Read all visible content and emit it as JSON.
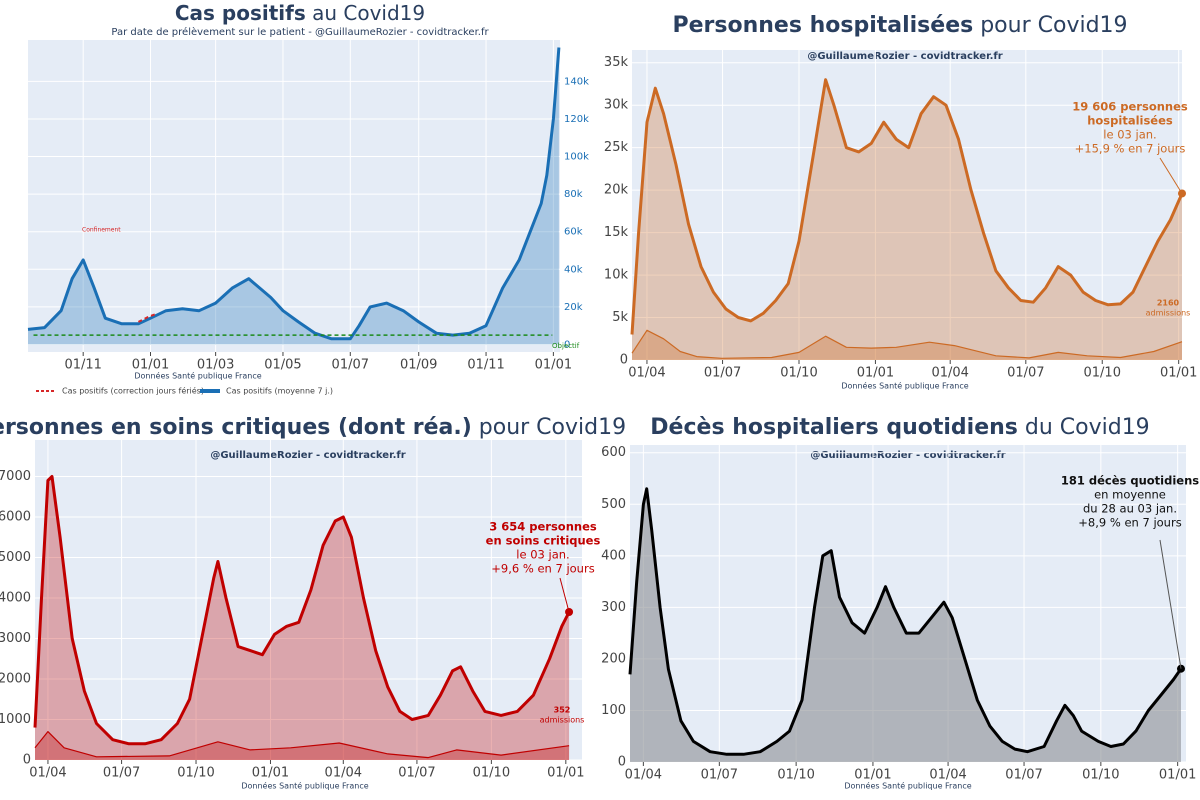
{
  "chart_data": [
    {
      "type": "line",
      "title_bold": "Cas positifs",
      "title_rest": " au Covid19",
      "subtitle": "Par date de prélèvement sur le patient - @GuillaumeRozier - covidtracker.fr",
      "source": "Données Santé publique France",
      "yaxis_side": "right",
      "grid": true,
      "xlim": [
        -50,
        432
      ],
      "xticks": [
        {
          "value": 0,
          "label": "01/11"
        },
        {
          "value": 61,
          "label": "01/01"
        },
        {
          "value": 120,
          "label": "01/03"
        },
        {
          "value": 181,
          "label": "01/05"
        },
        {
          "value": 242,
          "label": "01/07"
        },
        {
          "value": 304,
          "label": "01/09"
        },
        {
          "value": 365,
          "label": "01/11"
        },
        {
          "value": 426,
          "label": "01/01"
        }
      ],
      "ylim": [
        -4000,
        162000
      ],
      "yticks": [
        0,
        {
          "value": 20000,
          "label": "20k"
        },
        {
          "value": 40000,
          "label": "40k"
        },
        {
          "value": 60000,
          "label": "60k"
        },
        {
          "value": 80000,
          "label": "80k"
        },
        {
          "value": 100000,
          "label": "100k"
        },
        {
          "value": 120000,
          "label": "120k"
        },
        {
          "value": 140000,
          "label": "140k"
        }
      ],
      "annotations": [
        "Confinement",
        "Objectif"
      ],
      "series": [
        {
          "name": "Cas positifs (moyenne 7 j.)",
          "color": "#1a6fb5",
          "fill": true,
          "width": 3,
          "x": [
            -50,
            -35,
            -20,
            -10,
            0,
            10,
            20,
            35,
            50,
            61,
            75,
            90,
            105,
            120,
            135,
            150,
            160,
            170,
            181,
            195,
            210,
            225,
            242,
            250,
            260,
            275,
            290,
            304,
            320,
            335,
            350,
            365,
            380,
            395,
            405,
            415,
            420,
            426,
            431
          ],
          "values": [
            8000,
            9000,
            18000,
            35000,
            45000,
            30000,
            14000,
            11000,
            11000,
            14000,
            18000,
            19000,
            18000,
            22000,
            30000,
            35000,
            30000,
            25000,
            18000,
            12000,
            6000,
            3000,
            3000,
            10000,
            20000,
            22000,
            18000,
            12000,
            6000,
            5000,
            6000,
            10000,
            30000,
            45000,
            60000,
            75000,
            90000,
            120000,
            158000
          ]
        },
        {
          "name": "Cas positifs (correction jours fériés)",
          "color": "#d62728",
          "dash": true,
          "width": 2,
          "x": [
            50,
            55,
            60,
            65
          ],
          "values": [
            12000,
            13500,
            15000,
            16000
          ]
        },
        {
          "color": "#1a8a1a",
          "dash": true,
          "width": 1.5,
          "x": [
            -45,
            425
          ],
          "values": [
            5000,
            5000
          ]
        }
      ]
    },
    {
      "type": "line",
      "title_bold": "Personnes hospitalisées",
      "title_rest": " pour Covid19",
      "subtitle": "@GuillaumeRozier - covidtracker.fr",
      "source": "Données Santé publique France",
      "grid": true,
      "xlim": [
        -18,
        644
      ],
      "xticks": [
        {
          "value": 0,
          "label": "01/04"
        },
        {
          "value": 91,
          "label": "01/07"
        },
        {
          "value": 183,
          "label": "01/10"
        },
        {
          "value": 275,
          "label": "01/01"
        },
        {
          "value": 365,
          "label": "01/04"
        },
        {
          "value": 456,
          "label": "01/07"
        },
        {
          "value": 548,
          "label": "01/10"
        },
        {
          "value": 640,
          "label": "01/01"
        }
      ],
      "ylim": [
        0,
        36500
      ],
      "yticks": [
        0,
        {
          "value": 5000,
          "label": "5k"
        },
        {
          "value": 10000,
          "label": "10k"
        },
        {
          "value": 15000,
          "label": "15k"
        },
        {
          "value": 20000,
          "label": "20k"
        },
        {
          "value": 25000,
          "label": "25k"
        },
        {
          "value": 30000,
          "label": "30k"
        },
        {
          "value": 35000,
          "label": "35k"
        }
      ],
      "annotations": [
        "19 606 personnes",
        "hospitalisées",
        "le 03 jan.",
        "+15,9 % en 7 jours"
      ],
      "admissions_label": [
        "2160",
        "admissions"
      ],
      "series": [
        {
          "color": "#cc6a24",
          "fill": true,
          "width": 3,
          "x": [
            -18,
            -10,
            0,
            10,
            20,
            35,
            50,
            65,
            80,
            95,
            110,
            125,
            140,
            155,
            170,
            183,
            200,
            215,
            225,
            240,
            255,
            270,
            285,
            300,
            315,
            330,
            345,
            360,
            375,
            390,
            405,
            420,
            435,
            450,
            465,
            480,
            495,
            510,
            525,
            540,
            555,
            570,
            585,
            600,
            615,
            630,
            644
          ],
          "values": [
            3000,
            15000,
            28000,
            32000,
            29000,
            23000,
            16000,
            11000,
            8000,
            6000,
            5000,
            4600,
            5500,
            7000,
            9000,
            14000,
            24000,
            33000,
            30000,
            25000,
            24500,
            25500,
            28000,
            26000,
            25000,
            29000,
            31000,
            30000,
            26000,
            20000,
            15000,
            10500,
            8500,
            7000,
            6800,
            8500,
            11000,
            10000,
            8000,
            7000,
            6500,
            6600,
            8000,
            11000,
            14000,
            16500,
            19606
          ]
        },
        {
          "color": "#cc6a24",
          "fill": true,
          "width": 1.2,
          "x": [
            -18,
            0,
            20,
            40,
            60,
            90,
            150,
            183,
            215,
            240,
            270,
            300,
            340,
            370,
            420,
            460,
            495,
            530,
            570,
            610,
            644
          ],
          "values": [
            800,
            3500,
            2500,
            1000,
            400,
            200,
            300,
            900,
            2800,
            1500,
            1400,
            1500,
            2100,
            1700,
            500,
            250,
            900,
            500,
            300,
            1000,
            2160
          ]
        }
      ]
    },
    {
      "type": "line",
      "title_bold": "Personnes en soins critiques (dont réa.)",
      "title_rest": " pour Covid19",
      "subtitle": "@GuillaumeRozier - covidtracker.fr",
      "source": "Données Santé publique France",
      "grid": true,
      "xlim": [
        -16,
        660
      ],
      "xticks": [
        {
          "value": 0,
          "label": "01/04"
        },
        {
          "value": 91,
          "label": "01/07"
        },
        {
          "value": 183,
          "label": "01/10"
        },
        {
          "value": 275,
          "label": "01/01"
        },
        {
          "value": 365,
          "label": "01/04"
        },
        {
          "value": 456,
          "label": "01/07"
        },
        {
          "value": 548,
          "label": "01/10"
        },
        {
          "value": 640,
          "label": "01/01"
        }
      ],
      "ylim": [
        0,
        7900
      ],
      "yticks": [
        0,
        1000,
        2000,
        3000,
        4000,
        5000,
        6000,
        7000
      ],
      "annotations": [
        "3 654 personnes",
        "en soins critiques",
        "le 03 jan.",
        "+9,6 % en 7 jours"
      ],
      "admissions_label": [
        "352",
        "admissions"
      ],
      "series": [
        {
          "color": "#c00000",
          "fill": true,
          "width": 3,
          "x": [
            -16,
            -8,
            0,
            5,
            15,
            30,
            45,
            60,
            80,
            100,
            120,
            140,
            160,
            175,
            190,
            205,
            210,
            220,
            235,
            250,
            265,
            280,
            295,
            310,
            325,
            340,
            355,
            365,
            375,
            390,
            405,
            420,
            435,
            450,
            470,
            485,
            500,
            510,
            525,
            540,
            560,
            580,
            600,
            620,
            635,
            644
          ],
          "values": [
            800,
            4000,
            6900,
            7000,
            5500,
            3000,
            1700,
            900,
            500,
            400,
            400,
            500,
            900,
            1500,
            3000,
            4500,
            4900,
            4000,
            2800,
            2700,
            2600,
            3100,
            3300,
            3400,
            4200,
            5300,
            5900,
            6000,
            5500,
            4000,
            2700,
            1800,
            1200,
            1000,
            1100,
            1600,
            2200,
            2300,
            1700,
            1200,
            1100,
            1200,
            1600,
            2500,
            3300,
            3654
          ]
        },
        {
          "color": "#c00000",
          "fill": true,
          "width": 1.2,
          "x": [
            -16,
            0,
            20,
            60,
            150,
            210,
            250,
            300,
            360,
            420,
            470,
            505,
            560,
            644
          ],
          "values": [
            300,
            700,
            300,
            80,
            100,
            450,
            250,
            300,
            420,
            150,
            60,
            250,
            120,
            352
          ]
        }
      ]
    },
    {
      "type": "line",
      "title_bold": "Décès hospitaliers quotidiens",
      "title_rest": " du Covid19",
      "subtitle": "@GuillaumeRozier - covidtracker.fr",
      "source": "Données Santé publique France",
      "grid": true,
      "xlim": [
        -16,
        650
      ],
      "xticks": [
        {
          "value": 0,
          "label": "01/04"
        },
        {
          "value": 91,
          "label": "01/07"
        },
        {
          "value": 183,
          "label": "01/10"
        },
        {
          "value": 275,
          "label": "01/01"
        },
        {
          "value": 365,
          "label": "01/04"
        },
        {
          "value": 456,
          "label": "01/07"
        },
        {
          "value": 548,
          "label": "01/10"
        },
        {
          "value": 640,
          "label": "01/01"
        }
      ],
      "ylim": [
        0,
        615
      ],
      "yticks": [
        0,
        100,
        200,
        300,
        400,
        500,
        600
      ],
      "annotations": [
        "181 décès quotidiens",
        "en moyenne",
        "du 28 au 03 jan.",
        "+8,9 % en 7 jours"
      ],
      "series": [
        {
          "color": "#000000",
          "fill": true,
          "fillColor": "#8c8f94",
          "width": 3,
          "x": [
            -16,
            -8,
            0,
            4,
            10,
            20,
            30,
            45,
            60,
            80,
            100,
            120,
            140,
            160,
            175,
            190,
            205,
            215,
            225,
            235,
            250,
            265,
            280,
            290,
            300,
            315,
            330,
            345,
            360,
            370,
            385,
            400,
            415,
            430,
            445,
            460,
            480,
            495,
            505,
            515,
            525,
            545,
            560,
            575,
            590,
            605,
            620,
            635,
            644
          ],
          "values": [
            170,
            350,
            500,
            530,
            450,
            300,
            180,
            80,
            40,
            20,
            15,
            15,
            20,
            40,
            60,
            120,
            300,
            400,
            410,
            320,
            270,
            250,
            300,
            340,
            300,
            250,
            250,
            280,
            310,
            280,
            200,
            120,
            70,
            40,
            25,
            20,
            30,
            80,
            110,
            90,
            60,
            40,
            30,
            35,
            60,
            100,
            130,
            160,
            181
          ]
        }
      ]
    }
  ]
}
